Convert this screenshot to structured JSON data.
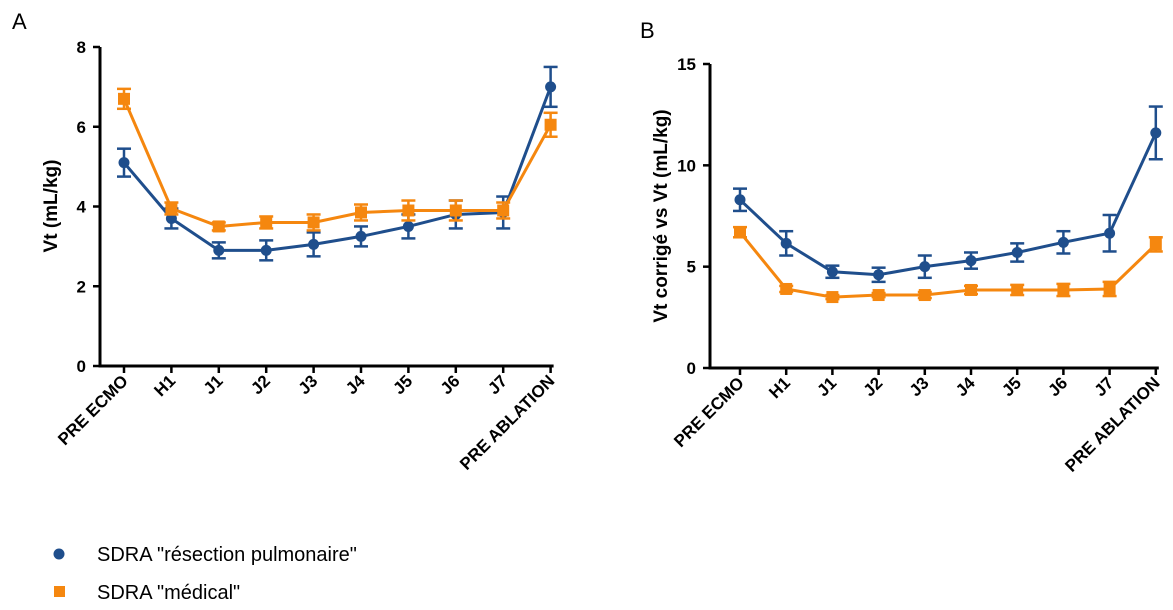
{
  "colors": {
    "series_blue": "#1f4e8c",
    "series_orange": "#f5870f",
    "axis": "#000000"
  },
  "legend": {
    "items": [
      {
        "label": "SDRA \"résection pulmonaire\"",
        "marker": "circle",
        "color": "#1f4e8c"
      },
      {
        "label": "SDRA \"médical\"",
        "marker": "square",
        "color": "#f5870f"
      }
    ]
  },
  "chart_data": [
    {
      "panel_label": "A",
      "type": "line",
      "ylabel": "Vt (mL/kg)",
      "xlabel": "",
      "categories": [
        "PRE ECMO",
        "H1",
        "J1",
        "J2",
        "J3",
        "J4",
        "J5",
        "J6",
        "J7",
        "PRE ABLATION"
      ],
      "ylim": [
        0,
        8
      ],
      "yticks": [
        0,
        2,
        4,
        6,
        8
      ],
      "grid": false,
      "series": [
        {
          "name": "SDRA \"résection pulmonaire\"",
          "marker": "circle",
          "color": "#1f4e8c",
          "values": [
            5.1,
            3.7,
            2.9,
            2.9,
            3.05,
            3.25,
            3.5,
            3.8,
            3.85,
            7.0
          ],
          "errors": [
            0.35,
            0.25,
            0.2,
            0.25,
            0.3,
            0.25,
            0.3,
            0.35,
            0.4,
            0.5
          ]
        },
        {
          "name": "SDRA \"médical\"",
          "marker": "square",
          "color": "#f5870f",
          "values": [
            6.7,
            3.95,
            3.5,
            3.6,
            3.6,
            3.85,
            3.9,
            3.9,
            3.9,
            6.05
          ],
          "errors": [
            0.25,
            0.15,
            0.1,
            0.15,
            0.2,
            0.2,
            0.25,
            0.25,
            0.2,
            0.3
          ]
        }
      ]
    },
    {
      "panel_label": "B",
      "type": "line",
      "ylabel": "Vt corrigé vs Vt (mL/kg)",
      "xlabel": "",
      "categories": [
        "PRE ECMO",
        "H1",
        "J1",
        "J2",
        "J3",
        "J4",
        "J5",
        "J6",
        "J7",
        "PRE ABLATION"
      ],
      "ylim": [
        0,
        15
      ],
      "yticks": [
        0,
        5,
        10,
        15
      ],
      "grid": false,
      "series": [
        {
          "name": "SDRA \"résection pulmonaire\"",
          "marker": "circle",
          "color": "#1f4e8c",
          "values": [
            8.3,
            6.15,
            4.75,
            4.6,
            5.0,
            5.3,
            5.7,
            6.2,
            6.65,
            11.6
          ],
          "errors": [
            0.55,
            0.6,
            0.3,
            0.35,
            0.55,
            0.4,
            0.45,
            0.55,
            0.9,
            1.3
          ]
        },
        {
          "name": "SDRA \"médical\"",
          "marker": "square",
          "color": "#f5870f",
          "values": [
            6.7,
            3.9,
            3.5,
            3.6,
            3.6,
            3.85,
            3.85,
            3.85,
            3.9,
            6.1
          ],
          "errors": [
            0.25,
            0.15,
            0.1,
            0.1,
            0.15,
            0.2,
            0.25,
            0.3,
            0.35,
            0.35
          ]
        }
      ]
    }
  ]
}
